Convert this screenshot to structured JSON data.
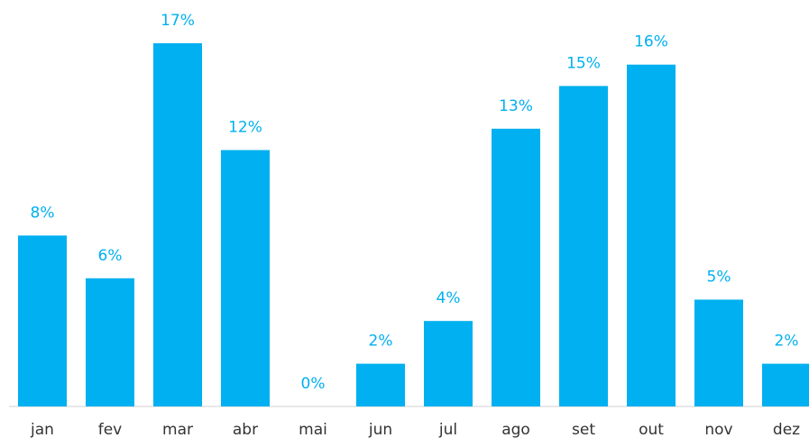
{
  "chart_data": {
    "type": "bar",
    "categories": [
      "jan",
      "fev",
      "mar",
      "abr",
      "mai",
      "jun",
      "jul",
      "ago",
      "set",
      "out",
      "nov",
      "dez"
    ],
    "values": [
      8,
      6,
      17,
      12,
      0,
      2,
      4,
      13,
      15,
      16,
      5,
      2
    ],
    "value_labels": [
      "8%",
      "6%",
      "17%",
      "12%",
      "0%",
      "2%",
      "4%",
      "13%",
      "15%",
      "16%",
      "5%",
      "2%"
    ],
    "color": "#00b0f0"
  }
}
